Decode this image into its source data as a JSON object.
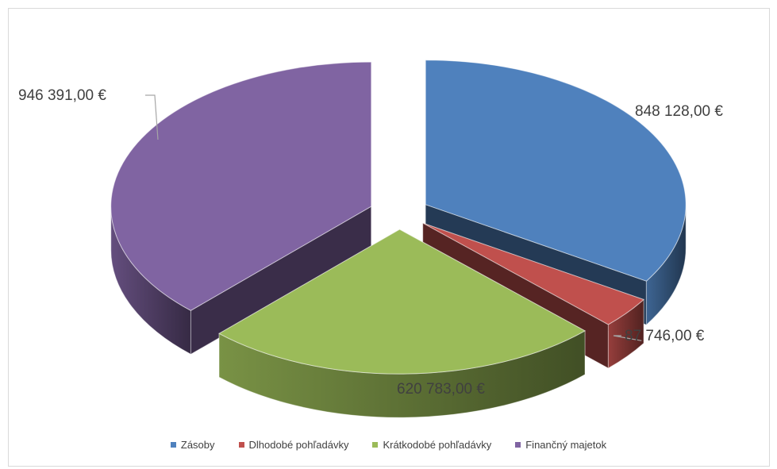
{
  "chart_data": {
    "type": "pie",
    "style": "3d-exploded",
    "categories": [
      "Zásoby",
      "Dlhodobé pohľadávky",
      "Krátkodobé pohľadávky",
      "Finančný majetok"
    ],
    "values": [
      848128.0,
      87746.0,
      620783.0,
      946391.0
    ],
    "data_labels": [
      "848 128,00 €",
      "87 746,00 €",
      "620 783,00 €",
      "946 391,00 €"
    ],
    "colors": [
      "#4F81BD",
      "#C0504D",
      "#9BBB59",
      "#8064A2"
    ],
    "legend_position": "bottom"
  }
}
